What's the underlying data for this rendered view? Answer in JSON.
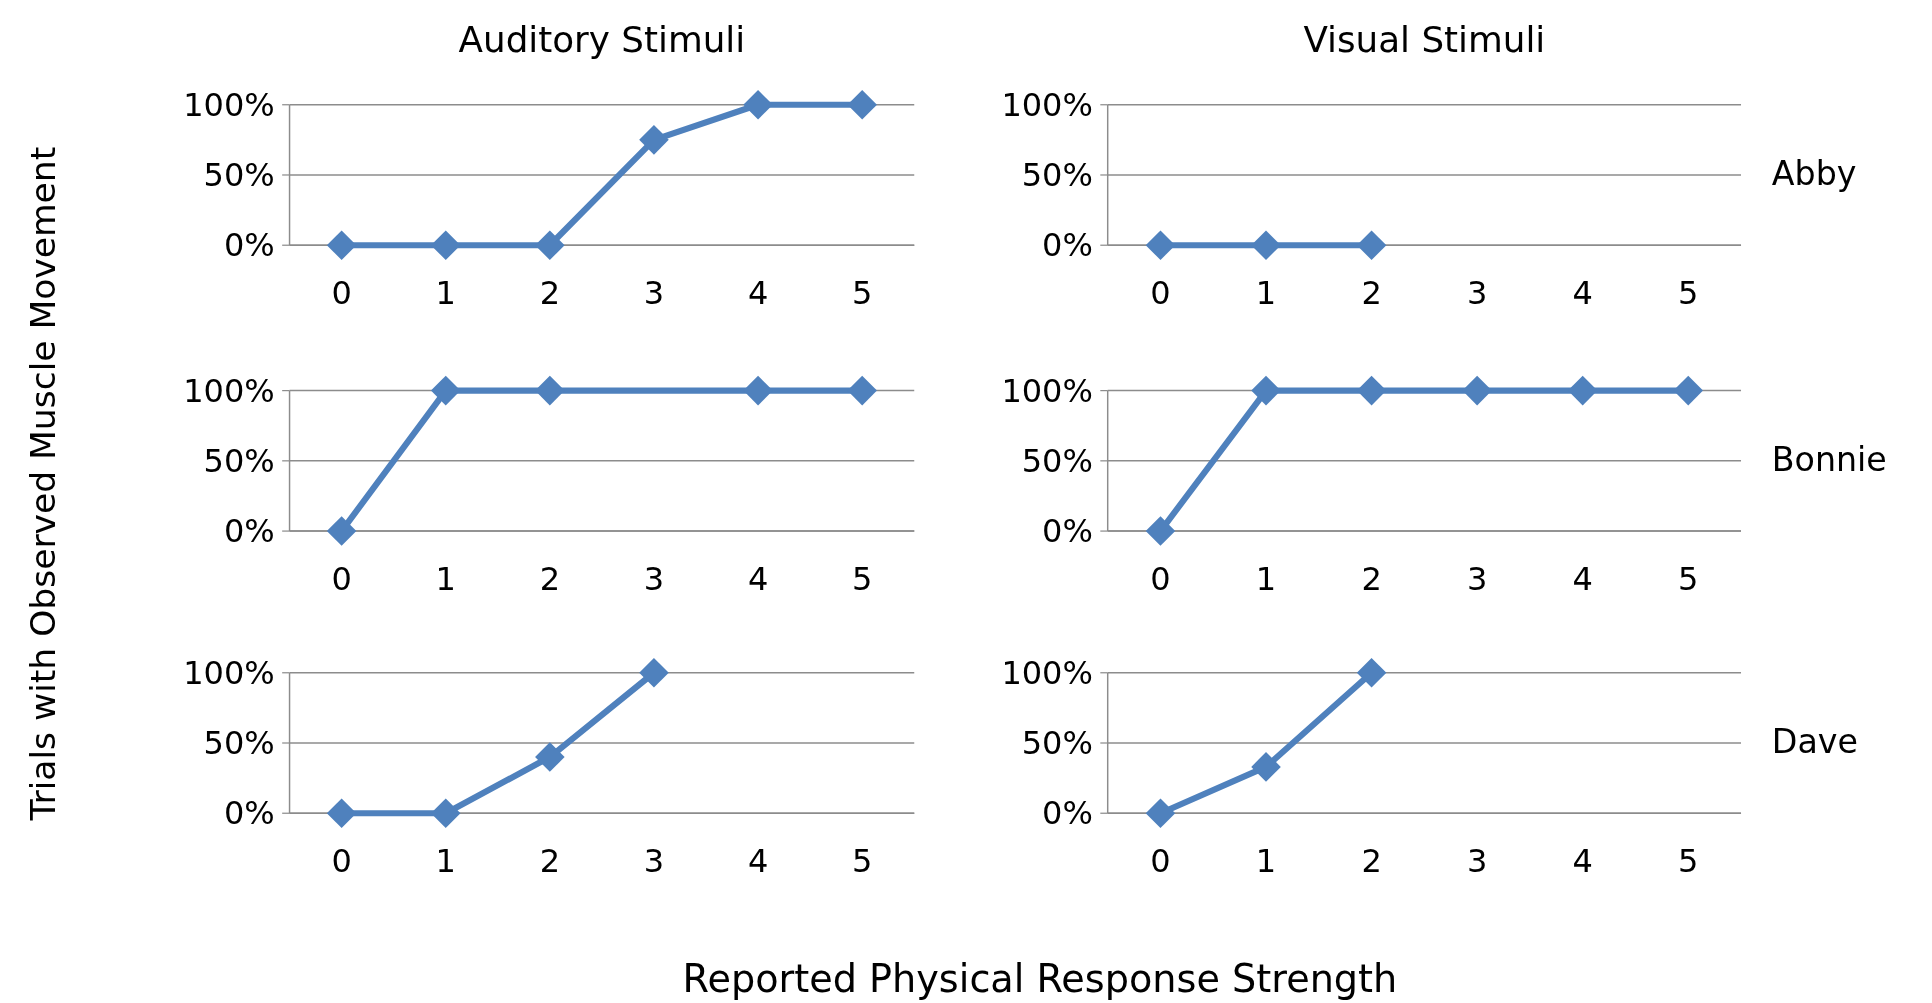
{
  "chart_data": [
    {
      "type": "line",
      "title": "Auditory Stimuli",
      "ylabel": "Trials with Observed Muscle Movement",
      "x": [
        0,
        1,
        2,
        3,
        4,
        5
      ],
      "series": [
        {
          "color": "#4f81bd",
          "values": [
            0,
            0,
            0,
            75,
            100,
            100
          ]
        }
      ],
      "xlim": [
        -0.5,
        5.5
      ],
      "xticks": [
        0,
        1,
        2,
        3,
        4,
        5
      ],
      "ylim": [
        0,
        100
      ],
      "yticks": [
        {
          "value": 0,
          "label": "0%"
        },
        {
          "value": 50,
          "label": "50%"
        },
        {
          "value": 100,
          "label": "100%"
        }
      ],
      "grid": "y",
      "marker": "diamond"
    },
    {
      "type": "line",
      "title": "Visual Stimuli",
      "annotations": [
        "Abby"
      ],
      "x": [
        0,
        1,
        2
      ],
      "series": [
        {
          "color": "#4f81bd",
          "values": [
            0,
            0,
            0
          ]
        }
      ],
      "xlim": [
        -0.5,
        5.5
      ],
      "xticks": [
        0,
        1,
        2,
        3,
        4,
        5
      ],
      "ylim": [
        0,
        100
      ],
      "yticks": [
        {
          "value": 0,
          "label": "0%"
        },
        {
          "value": 50,
          "label": "50%"
        },
        {
          "value": 100,
          "label": "100%"
        }
      ],
      "grid": "y",
      "marker": "diamond"
    },
    {
      "type": "line",
      "x": [
        0,
        1,
        2,
        4,
        5
      ],
      "series": [
        {
          "color": "#4f81bd",
          "values": [
            0,
            100,
            100,
            100,
            100
          ]
        }
      ],
      "xlim": [
        -0.5,
        5.5
      ],
      "xticks": [
        0,
        1,
        2,
        3,
        4,
        5
      ],
      "ylim": [
        0,
        100
      ],
      "yticks": [
        {
          "value": 0,
          "label": "0%"
        },
        {
          "value": 50,
          "label": "50%"
        },
        {
          "value": 100,
          "label": "100%"
        }
      ],
      "grid": "y",
      "marker": "diamond"
    },
    {
      "type": "line",
      "annotations": [
        "Bonnie"
      ],
      "x": [
        0,
        1,
        2,
        3,
        4,
        5
      ],
      "series": [
        {
          "color": "#4f81bd",
          "values": [
            0,
            100,
            100,
            100,
            100,
            100
          ]
        }
      ],
      "xlim": [
        -0.5,
        5.5
      ],
      "xticks": [
        0,
        1,
        2,
        3,
        4,
        5
      ],
      "ylim": [
        0,
        100
      ],
      "yticks": [
        {
          "value": 0,
          "label": "0%"
        },
        {
          "value": 50,
          "label": "50%"
        },
        {
          "value": 100,
          "label": "100%"
        }
      ],
      "grid": "y",
      "marker": "diamond"
    },
    {
      "type": "line",
      "xlabel": "Reported Physical Response Strength",
      "x": [
        0,
        1,
        2,
        3
      ],
      "series": [
        {
          "color": "#4f81bd",
          "values": [
            0,
            0,
            40,
            100
          ]
        }
      ],
      "xlim": [
        -0.5,
        5.5
      ],
      "xticks": [
        0,
        1,
        2,
        3,
        4,
        5
      ],
      "ylim": [
        0,
        100
      ],
      "yticks": [
        {
          "value": 0,
          "label": "0%"
        },
        {
          "value": 50,
          "label": "50%"
        },
        {
          "value": 100,
          "label": "100%"
        }
      ],
      "grid": "y",
      "marker": "diamond"
    },
    {
      "type": "line",
      "annotations": [
        "Dave"
      ],
      "x": [
        0,
        1,
        2
      ],
      "series": [
        {
          "color": "#4f81bd",
          "values": [
            0,
            33,
            100
          ]
        }
      ],
      "xlim": [
        -0.5,
        5.5
      ],
      "xticks": [
        0,
        1,
        2,
        3,
        4,
        5
      ],
      "ylim": [
        0,
        100
      ],
      "yticks": [
        {
          "value": 0,
          "label": "0%"
        },
        {
          "value": 50,
          "label": "50%"
        },
        {
          "value": 100,
          "label": "100%"
        }
      ],
      "grid": "y",
      "marker": "diamond"
    }
  ]
}
